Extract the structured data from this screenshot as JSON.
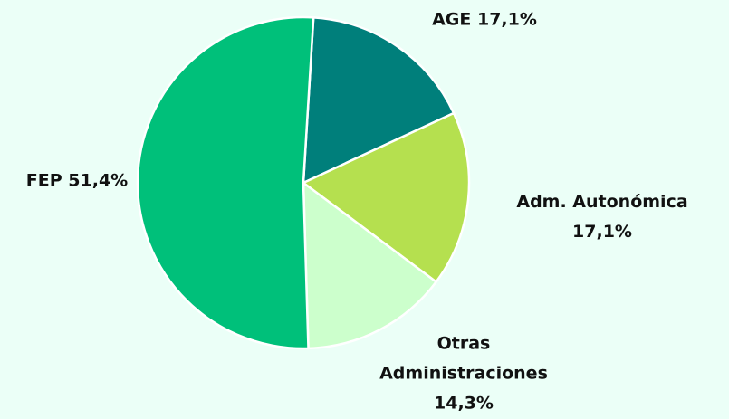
{
  "chart_data": {
    "type": "pie",
    "categories": [
      "AGE",
      "Adm. Autonómica",
      "Otras Administraciones",
      "FEP"
    ],
    "values": [
      17.1,
      17.1,
      14.3,
      51.4
    ],
    "value_labels": [
      "17,1%",
      "17,1%",
      "14,3%",
      "51,4%"
    ],
    "colors": [
      "#007f7b",
      "#b5e04f",
      "#ccffcc",
      "#00c07a"
    ]
  }
}
